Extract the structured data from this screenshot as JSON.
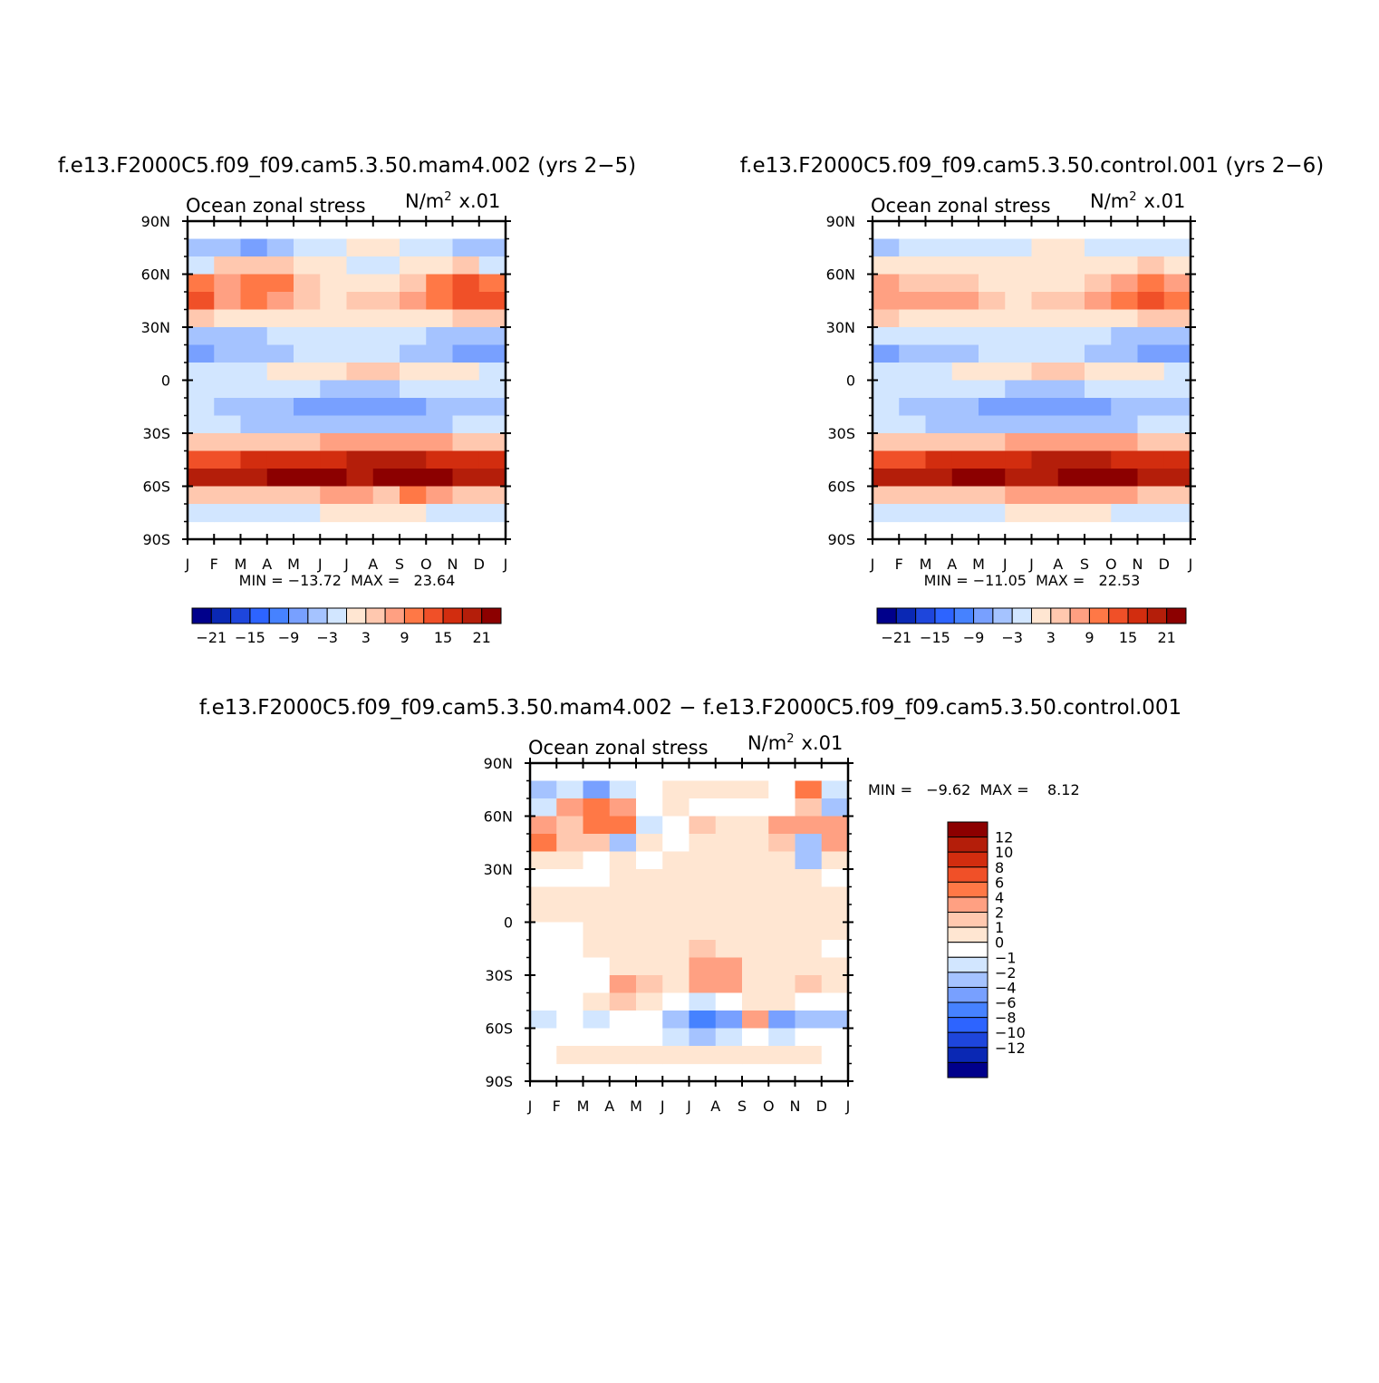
{
  "figure": {
    "title_left": "f.e13.F2000C5.f09_f09.cam5.3.50.mam4.002 (yrs 2−5)",
    "title_right": "f.e13.F2000C5.f09_f09.cam5.3.50.control.001 (yrs 2−6)",
    "title_diff": "f.e13.F2000C5.f09_f09.cam5.3.50.mam4.002 − f.e13.F2000C5.f09_f09.cam5.3.50.control.001"
  },
  "chart_data": [
    {
      "type": "heatmap",
      "id": "mam4",
      "title": "Ocean zonal stress",
      "units_text": "N/m",
      "units_sup": "2",
      "units_scale": "x.01",
      "x_tick_labels": [
        "J",
        "F",
        "M",
        "A",
        "M",
        "J",
        "J",
        "A",
        "S",
        "O",
        "N",
        "D",
        "J"
      ],
      "y_tick_labels": [
        "90N",
        "60N",
        "30N",
        "0",
        "30S",
        "60S",
        "90S"
      ],
      "ylim": [
        -90,
        90
      ],
      "months": [
        "J",
        "F",
        "M",
        "A",
        "M",
        "J",
        "J",
        "A",
        "S",
        "O",
        "N",
        "D"
      ],
      "latitudes": [
        75,
        65,
        55,
        45,
        35,
        25,
        15,
        5,
        -5,
        -15,
        -25,
        -35,
        -45,
        -55,
        -65,
        -75
      ],
      "values": [
        [
          -6,
          -5,
          -9,
          -4,
          -2,
          -1,
          0,
          0,
          -1,
          -3,
          -4,
          -5
        ],
        [
          -2,
          3,
          5,
          4,
          0,
          0,
          -1,
          -1,
          0,
          2,
          3,
          -1
        ],
        [
          9,
          6,
          10,
          9,
          4,
          1,
          2,
          2,
          4,
          9,
          12,
          11
        ],
        [
          12,
          8,
          9,
          7,
          3,
          1,
          3,
          4,
          6,
          11,
          14,
          14
        ],
        [
          3,
          2,
          1,
          1,
          0,
          1,
          1,
          1,
          1,
          2,
          3,
          3
        ],
        [
          -4,
          -4,
          -4,
          -3,
          -2,
          -2,
          -2,
          -2,
          -3,
          -4,
          -5,
          -6
        ],
        [
          -8,
          -6,
          -5,
          -4,
          -3,
          -3,
          -3,
          -3,
          -4,
          -5,
          -7,
          -9
        ],
        [
          -2,
          -1,
          -1,
          0,
          1,
          2,
          3,
          3,
          2,
          1,
          0,
          -1
        ],
        [
          -1,
          -1,
          -2,
          -3,
          -3,
          -4,
          -4,
          -4,
          -3,
          -2,
          -1,
          -1
        ],
        [
          -3,
          -4,
          -5,
          -6,
          -7,
          -8,
          -9,
          -9,
          -8,
          -6,
          -5,
          -4
        ],
        [
          -2,
          -3,
          -4,
          -4,
          -5,
          -5,
          -5,
          -5,
          -5,
          -4,
          -3,
          -3
        ],
        [
          4,
          4,
          4,
          5,
          5,
          6,
          7,
          7,
          7,
          6,
          5,
          5
        ],
        [
          14,
          14,
          15,
          15,
          16,
          17,
          18,
          18,
          18,
          17,
          16,
          15
        ],
        [
          18,
          19,
          20,
          21,
          22,
          21,
          20,
          21,
          23,
          22,
          20,
          19
        ],
        [
          3,
          3,
          4,
          5,
          5,
          8,
          6,
          5,
          9,
          6,
          4,
          3
        ],
        [
          -1,
          -1,
          -1,
          -1,
          -1,
          0,
          0,
          0,
          0,
          -1,
          -1,
          -1
        ]
      ],
      "min_max_text": "MIN = −13.72  MAX =   23.64",
      "colorbar_labels": [
        "−21",
        "−15",
        "−9",
        "−3",
        "3",
        "9",
        "15",
        "21"
      ],
      "colorbar_colors": [
        "#00008b",
        "#0a28b4",
        "#1e46dc",
        "#2d64ff",
        "#4682ff",
        "#78a0ff",
        "#a5c3ff",
        "#d2e6ff",
        "#ffe6d2",
        "#ffc8af",
        "#ffa082",
        "#ff7846",
        "#f05028",
        "#d22d0f",
        "#b41e0a",
        "#8c0000"
      ]
    },
    {
      "type": "heatmap",
      "id": "control",
      "title": "Ocean zonal stress",
      "units_text": "N/m",
      "units_sup": "2",
      "units_scale": "x.01",
      "x_tick_labels": [
        "J",
        "F",
        "M",
        "A",
        "M",
        "J",
        "J",
        "A",
        "S",
        "O",
        "N",
        "D",
        "J"
      ],
      "y_tick_labels": [
        "90N",
        "60N",
        "30N",
        "0",
        "30S",
        "60S",
        "90S"
      ],
      "ylim": [
        -90,
        90
      ],
      "months": [
        "J",
        "F",
        "M",
        "A",
        "M",
        "J",
        "J",
        "A",
        "S",
        "O",
        "N",
        "D"
      ],
      "latitudes": [
        75,
        65,
        55,
        45,
        35,
        25,
        15,
        5,
        -5,
        -15,
        -25,
        -35,
        -45,
        -55,
        -65,
        -75
      ],
      "values": [
        [
          -4,
          -3,
          -3,
          -2,
          -1,
          -1,
          0,
          0,
          -1,
          -2,
          -3,
          -3
        ],
        [
          0,
          1,
          2,
          2,
          1,
          0,
          0,
          0,
          1,
          2,
          3,
          2
        ],
        [
          6,
          5,
          5,
          4,
          2,
          1,
          1,
          2,
          4,
          7,
          9,
          8
        ],
        [
          8,
          7,
          8,
          6,
          3,
          2,
          3,
          4,
          6,
          10,
          12,
          11
        ],
        [
          3,
          2,
          2,
          1,
          1,
          1,
          1,
          1,
          1,
          2,
          3,
          3
        ],
        [
          -3,
          -3,
          -3,
          -3,
          -2,
          -2,
          -2,
          -2,
          -3,
          -4,
          -4,
          -5
        ],
        [
          -8,
          -6,
          -5,
          -4,
          -3,
          -3,
          -3,
          -3,
          -4,
          -5,
          -7,
          -9
        ],
        [
          -2,
          -1,
          -1,
          0,
          1,
          2,
          3,
          3,
          2,
          1,
          0,
          -1
        ],
        [
          -1,
          -1,
          -2,
          -3,
          -3,
          -4,
          -4,
          -4,
          -3,
          -2,
          -1,
          -1
        ],
        [
          -3,
          -4,
          -5,
          -6,
          -7,
          -8,
          -9,
          -9,
          -8,
          -6,
          -5,
          -4
        ],
        [
          -2,
          -3,
          -4,
          -4,
          -5,
          -5,
          -5,
          -5,
          -5,
          -4,
          -3,
          -3
        ],
        [
          4,
          4,
          4,
          5,
          5,
          6,
          7,
          7,
          7,
          6,
          5,
          5
        ],
        [
          14,
          14,
          15,
          15,
          16,
          17,
          18,
          18,
          18,
          17,
          16,
          15
        ],
        [
          18,
          19,
          20,
          21,
          21,
          20,
          19,
          21,
          22,
          21,
          20,
          19
        ],
        [
          3,
          3,
          4,
          5,
          5,
          6,
          7,
          6,
          7,
          6,
          4,
          3
        ],
        [
          -1,
          -1,
          -1,
          -1,
          -1,
          0,
          0,
          0,
          0,
          -1,
          -1,
          -1
        ]
      ],
      "min_max_text": "MIN = −11.05  MAX =   22.53",
      "colorbar_labels": [
        "−21",
        "−15",
        "−9",
        "−3",
        "3",
        "9",
        "15",
        "21"
      ],
      "colorbar_colors": [
        "#00008b",
        "#0a28b4",
        "#1e46dc",
        "#2d64ff",
        "#4682ff",
        "#78a0ff",
        "#a5c3ff",
        "#d2e6ff",
        "#ffe6d2",
        "#ffc8af",
        "#ffa082",
        "#ff7846",
        "#f05028",
        "#d22d0f",
        "#b41e0a",
        "#8c0000"
      ]
    },
    {
      "type": "heatmap",
      "id": "difference",
      "title": "Ocean zonal stress",
      "units_text": "N/m",
      "units_sup": "2",
      "units_scale": "x.01",
      "x_tick_labels": [
        "J",
        "F",
        "M",
        "A",
        "M",
        "J",
        "J",
        "A",
        "S",
        "O",
        "N",
        "D",
        "J"
      ],
      "y_tick_labels": [
        "90N",
        "60N",
        "30N",
        "0",
        "30S",
        "60S",
        "90S"
      ],
      "ylim": [
        -90,
        90
      ],
      "months": [
        "J",
        "F",
        "M",
        "A",
        "M",
        "J",
        "J",
        "A",
        "S",
        "O",
        "N",
        "D"
      ],
      "latitudes": [
        75,
        65,
        55,
        45,
        35,
        25,
        15,
        5,
        -5,
        -15,
        -25,
        -35,
        -45,
        -55,
        -65,
        -75
      ],
      "values": [
        [
          -3,
          -2,
          -6,
          -2,
          -1,
          0,
          0,
          0,
          0,
          -1,
          5,
          -2
        ],
        [
          -2,
          2,
          4,
          2,
          -1,
          0,
          -1,
          -1,
          -1,
          -1,
          1,
          -4
        ],
        [
          3,
          1,
          4,
          5,
          -2,
          -1,
          1,
          0,
          0,
          2,
          3,
          3
        ],
        [
          5,
          1,
          1,
          -3,
          0,
          -1,
          0,
          0,
          0,
          1,
          -3,
          3
        ],
        [
          0,
          0,
          -1,
          0,
          -1,
          0,
          0,
          0,
          0,
          0,
          -3,
          0
        ],
        [
          -1,
          -1,
          -1,
          0,
          0,
          0,
          0,
          0,
          0,
          0,
          0,
          -1
        ],
        [
          0,
          0,
          0,
          0,
          0,
          0,
          0,
          0,
          0,
          0,
          0,
          0
        ],
        [
          0,
          0,
          0,
          0,
          0,
          0,
          0,
          0,
          0,
          0,
          0,
          0
        ],
        [
          -1,
          -1,
          0,
          0,
          0,
          0,
          0,
          0,
          0,
          0,
          0,
          0
        ],
        [
          -1,
          -1,
          0,
          0,
          0,
          0,
          1,
          0,
          0,
          0,
          0,
          -1
        ],
        [
          -1,
          -1,
          -1,
          0,
          0,
          0,
          2,
          2,
          0,
          0,
          0,
          0
        ],
        [
          -1,
          -1,
          -1,
          2,
          1,
          0,
          3,
          3,
          0,
          0,
          1,
          0
        ],
        [
          -1,
          -1,
          0,
          1,
          0,
          -1,
          -2,
          -1,
          0,
          0,
          -1,
          -1
        ],
        [
          -2,
          -1,
          -2,
          -1,
          -1,
          -3,
          -8,
          -5,
          2,
          -5,
          -4,
          -3
        ],
        [
          -1,
          -1,
          -1,
          -1,
          -1,
          -2,
          -3,
          -2,
          -1,
          -2,
          -1,
          -1
        ],
        [
          -1,
          0,
          0,
          0,
          0,
          0,
          0,
          0,
          0,
          0,
          0,
          -1
        ]
      ],
      "min_max_text": "MIN =   −9.62  MAX =    8.12",
      "colorbar_labels": [
        "12",
        "10",
        "8",
        "6",
        "4",
        "2",
        "1",
        "0",
        "−1",
        "−2",
        "−4",
        "−6",
        "−8",
        "−10",
        "−12"
      ],
      "colorbar_colors": [
        "#8c0000",
        "#b41e0a",
        "#d22d0f",
        "#f05028",
        "#ff7846",
        "#ffa082",
        "#ffc8af",
        "#ffe6d2",
        "#ffffff",
        "#d2e6ff",
        "#a5c3ff",
        "#78a0ff",
        "#4682ff",
        "#2d64ff",
        "#1e46dc",
        "#0a28b4",
        "#00008b"
      ]
    }
  ]
}
